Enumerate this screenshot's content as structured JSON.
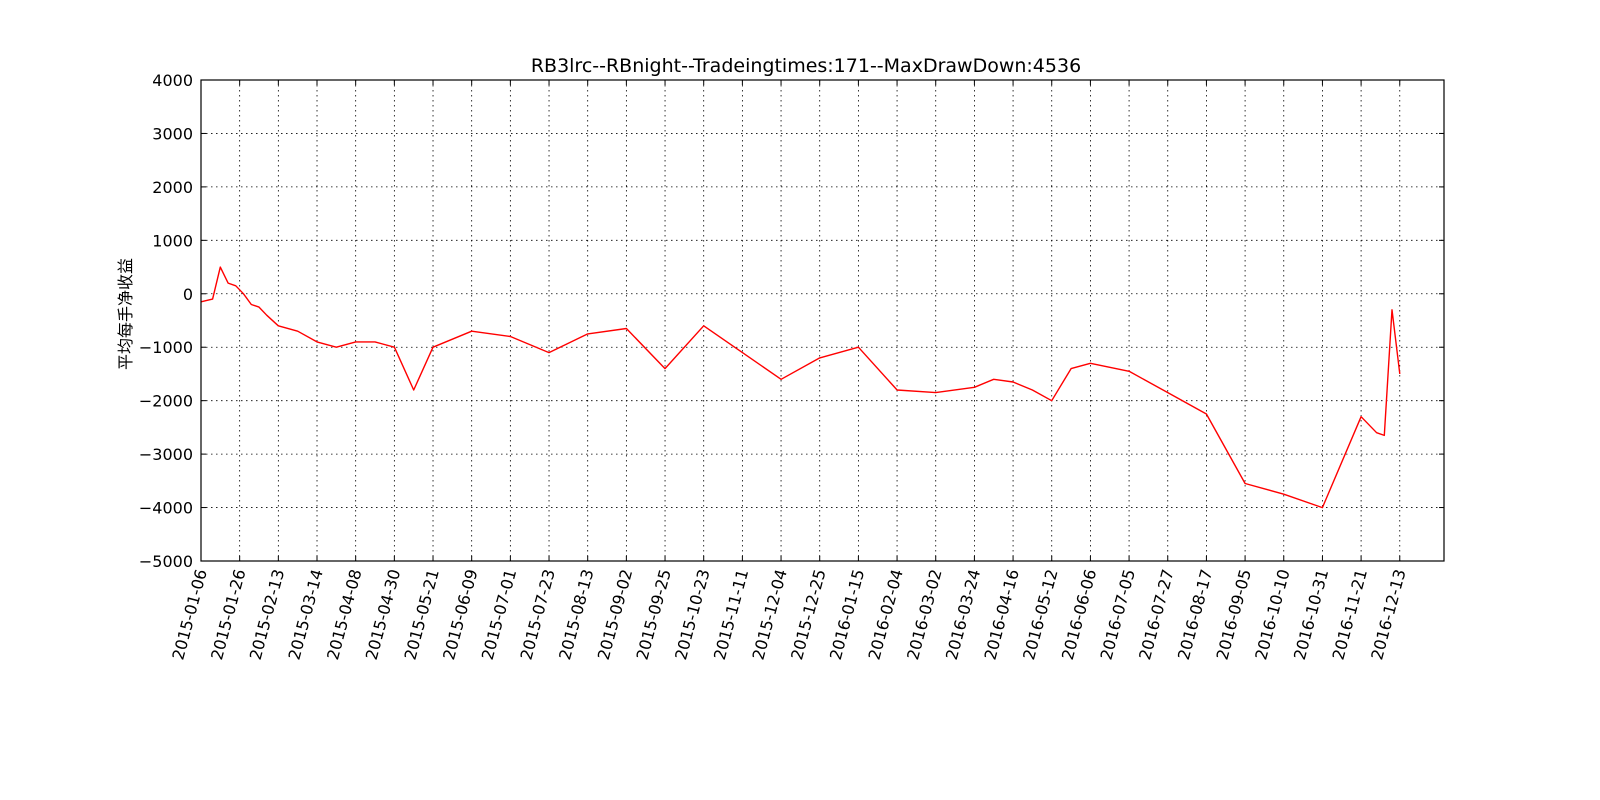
{
  "chart_data": {
    "type": "line",
    "title": "RB3lrc--RBnight--Tradeingtimes:171--MaxDrawDown:4536",
    "xlabel": "",
    "ylabel": "平均每手净收益",
    "ylim": [
      -5000,
      4000
    ],
    "yticks": [
      4000,
      3000,
      2000,
      1000,
      0,
      -1000,
      -2000,
      -3000,
      -4000,
      -5000
    ],
    "ytick_labels": [
      "4000",
      "3000",
      "2000",
      "1000",
      "0",
      "−1000",
      "−2000",
      "−3000",
      "−4000",
      "−5000"
    ],
    "xtick_labels": [
      "2015-01-06",
      "2015-01-26",
      "2015-02-13",
      "2015-03-14",
      "2015-04-08",
      "2015-04-30",
      "2015-05-21",
      "2015-06-09",
      "2015-07-01",
      "2015-07-23",
      "2015-08-13",
      "2015-09-02",
      "2015-09-25",
      "2015-10-23",
      "2015-11-11",
      "2015-12-04",
      "2015-12-25",
      "2016-01-15",
      "2016-02-04",
      "2016-03-02",
      "2016-03-24",
      "2016-04-16",
      "2016-05-12",
      "2016-06-06",
      "2016-07-05",
      "2016-07-27",
      "2016-08-17",
      "2016-09-05",
      "2016-10-10",
      "2016-10-31",
      "2016-11-21",
      "2016-12-13"
    ],
    "grid": true,
    "line_color": "#ff0000",
    "series": [
      {
        "x": [
          0,
          0.3,
          0.5,
          0.7,
          0.9,
          1.1,
          1.3,
          1.5,
          1.7,
          2.0,
          2.5,
          3.0,
          3.5,
          4.0,
          4.5,
          5.0,
          5.5,
          6.0,
          7.0,
          8.0,
          9.0,
          10.0,
          11.0,
          12.0,
          13.0,
          14.0,
          15.0,
          16.0,
          17.0,
          18.0,
          19.0,
          20.0,
          20.5,
          21.0,
          21.5,
          22.0,
          22.5,
          23.0,
          24.0,
          25.0,
          26.0,
          27.0,
          28.0,
          29.0,
          30.0,
          30.4,
          30.6,
          30.8,
          31.0
        ],
        "y": [
          -150,
          -100,
          500,
          200,
          150,
          0,
          -200,
          -250,
          -400,
          -600,
          -700,
          -900,
          -1000,
          -900,
          -900,
          -1000,
          -1800,
          -1000,
          -700,
          -800,
          -1100,
          -750,
          -650,
          -1400,
          -600,
          -1100,
          -1600,
          -1200,
          -1000,
          -1800,
          -1850,
          -1750,
          -1600,
          -1650,
          -1800,
          -2000,
          -1400,
          -1300,
          -1450,
          -1850,
          -2250,
          -3550,
          -3750,
          -4000,
          -2300,
          -2600,
          -2650,
          -300,
          -1500
        ]
      }
    ]
  }
}
